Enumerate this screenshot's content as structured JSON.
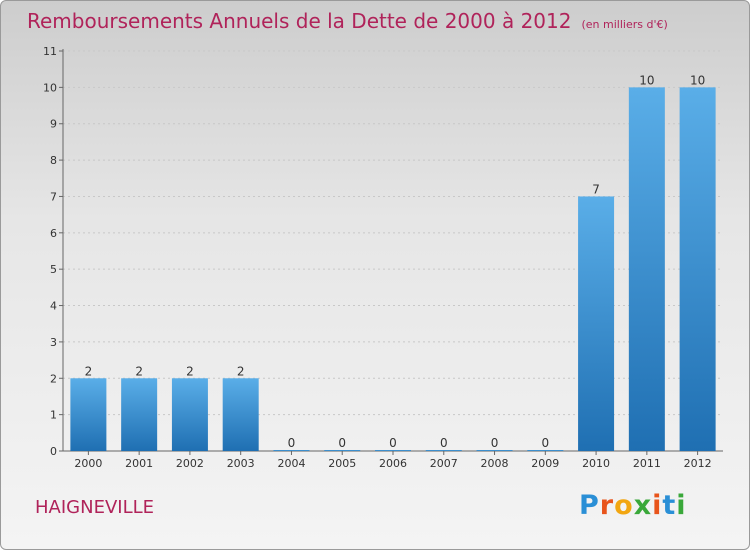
{
  "header": {
    "title": "Remboursements Annuels de la Dette de 2000 à 2012",
    "subtitle": "(en milliers d'€)"
  },
  "footer": {
    "place": "HAIGNEVILLE",
    "logo": {
      "text": "Proxiti",
      "colors": [
        "#2a8fd6",
        "#e8541b",
        "#f2a611",
        "#3aa83a",
        "#e8541b",
        "#2a8fd6",
        "#3aa83a"
      ]
    }
  },
  "chart_data": {
    "type": "bar",
    "title": "Remboursements Annuels de la Dette de 2000 à 2012",
    "subtitle": "(en milliers d'€)",
    "categories": [
      "2000",
      "2001",
      "2002",
      "2003",
      "2004",
      "2005",
      "2006",
      "2007",
      "2008",
      "2009",
      "2010",
      "2011",
      "2012"
    ],
    "values": [
      2,
      2,
      2,
      2,
      0,
      0,
      0,
      0,
      0,
      0,
      7,
      10,
      10
    ],
    "data_labels": [
      "2",
      "2",
      "2",
      "2",
      "0",
      "0",
      "0",
      "0",
      "0",
      "0",
      "7",
      "10",
      "10"
    ],
    "yticks": [
      "0",
      "1",
      "2",
      "3",
      "4",
      "5",
      "6",
      "7",
      "8",
      "9",
      "10",
      "11"
    ],
    "ylim": [
      0,
      11
    ],
    "xlabel": "",
    "ylabel": "",
    "grid": true,
    "colors": {
      "bar_light": "#5aaee8",
      "bar_dark": "#1f6fb2",
      "label": "#333333"
    }
  }
}
